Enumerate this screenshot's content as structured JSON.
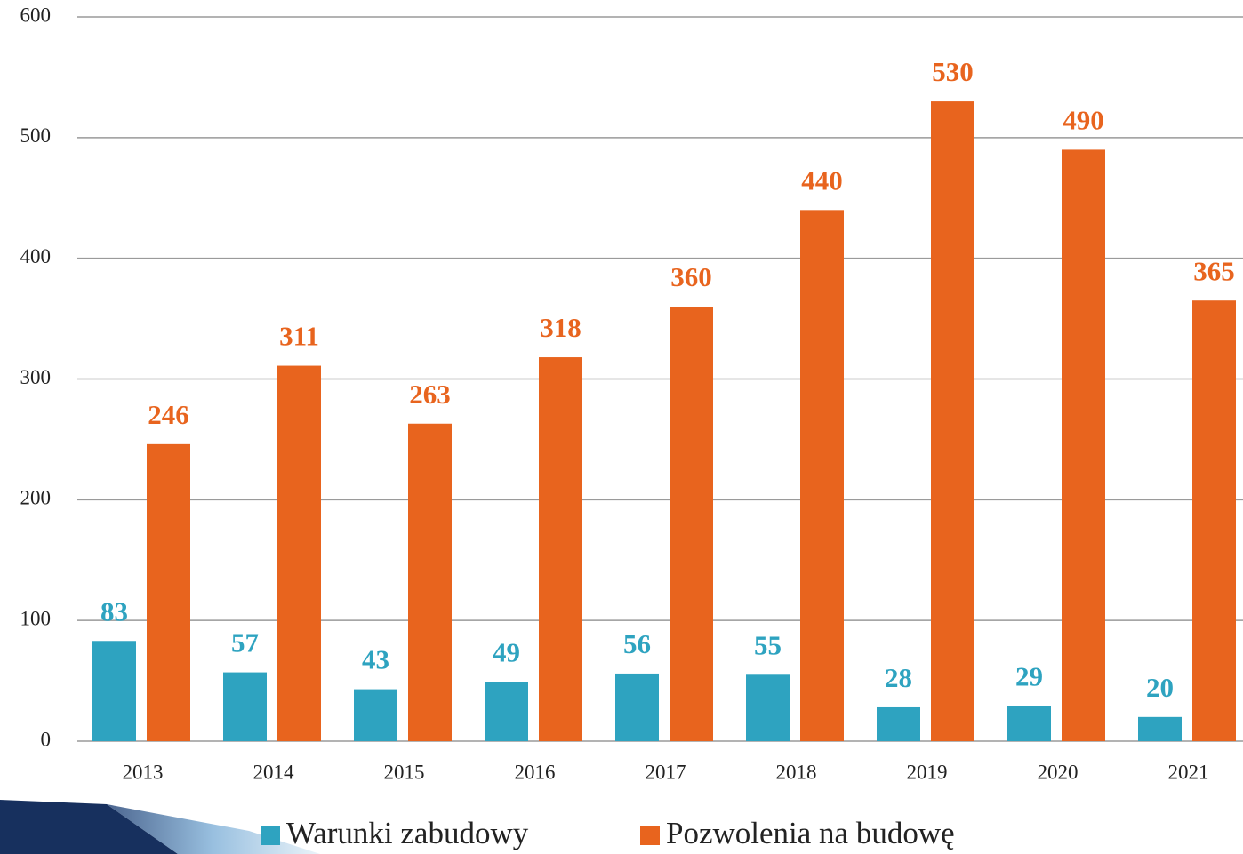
{
  "chart_data": {
    "type": "bar",
    "categories": [
      "2013",
      "2014",
      "2015",
      "2016",
      "2017",
      "2018",
      "2019",
      "2020",
      "2021"
    ],
    "series": [
      {
        "name": "Warunki zabudowy",
        "color": "#2ea3c0",
        "values": [
          83,
          57,
          43,
          49,
          56,
          55,
          28,
          29,
          20
        ]
      },
      {
        "name": "Pozwolenia na budowę",
        "color": "#e8641e",
        "values": [
          246,
          311,
          263,
          318,
          360,
          440,
          530,
          490,
          365
        ]
      }
    ],
    "ylim": [
      0,
      600
    ],
    "yticks": [
      0,
      100,
      200,
      300,
      400,
      500,
      600
    ],
    "grid": true,
    "legend": "bottom"
  }
}
